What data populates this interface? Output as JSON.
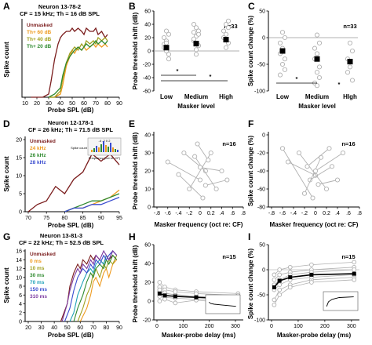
{
  "colors": {
    "unmasked": "#7b1d1d",
    "orange": "#ee9a1e",
    "green": "#2f8a2f",
    "olive": "#a0a020",
    "blue": "#3a4ccf",
    "purple": "#7c3aa0",
    "cyan": "#1fa2b8",
    "grey": "#b0b0b0"
  },
  "panels": {
    "A": {
      "letter": "A",
      "title1": "Neuron 13-78-2",
      "title2": "CF = 15 kHz; Th = 16 dB SPL",
      "xlabel": "Probe SPL (dB)",
      "ylabel": "Spike count",
      "xticks": [
        "10",
        "20",
        "30",
        "40",
        "50",
        "60",
        "70",
        "80",
        "90"
      ],
      "legend": [
        "Unmasked",
        "Th+ 60 dB",
        "Th+ 40 dB",
        "Th+ 20 dB"
      ]
    },
    "B": {
      "letter": "B",
      "ylabel": "Probe threshold shift (dB)",
      "xlabel": "Masker level",
      "n": "n=33",
      "xticks": [
        "Low",
        "Medium",
        "High"
      ],
      "yticks": [
        "60",
        "40",
        "20",
        "0",
        "-20",
        "-40",
        "-60"
      ],
      "star1": "*",
      "star2": "*"
    },
    "C": {
      "letter": "C",
      "ylabel": "Spike count change (%)",
      "xlabel": "Masker level",
      "n": "n=33",
      "xticks": [
        "Low",
        "Medium",
        "HIgh"
      ],
      "yticks": [
        "50",
        "0",
        "-50",
        "-100"
      ],
      "star1": "*",
      "star2": "*"
    },
    "D": {
      "letter": "D",
      "title1": "Neuron 12-178-1",
      "title2": "CF = 26 kHz; Th = 71.5 dB SPL",
      "xlabel": "Probe SPL (dB)",
      "ylabel": "Spike count",
      "xticks": [
        "70",
        "75",
        "80",
        "85",
        "90",
        "95"
      ],
      "yticks": [
        "0",
        "5",
        "10",
        "15",
        "20"
      ],
      "legend": [
        "Unmasked",
        "24 kHz",
        "26 kHz",
        "28 kHz"
      ],
      "inset_label": "Spike count",
      "inset_top": "-4 -2 0 2",
      "inset_bottom": "Frequency (oct re: CF)"
    },
    "E": {
      "letter": "E",
      "ylabel": "Probe threshold shift (dB)",
      "xlabel": "Masker frequency (oct re: CF)",
      "n": "n=16",
      "xticks": [
        "-.8",
        "-.6",
        "-.4",
        "-.2",
        "0",
        "0.2",
        ".4",
        ".6",
        ".8"
      ],
      "yticks": [
        "40",
        "30",
        "20",
        "10",
        "0"
      ]
    },
    "F": {
      "letter": "F",
      "ylabel": "Spike count change (%)",
      "xlabel": "Masker frequency (oct re: CF)",
      "n": "n=16",
      "xticks": [
        "-.8",
        "-.6",
        "-.4",
        "-.2",
        "0",
        "0.2",
        ".4",
        ".6",
        ".8"
      ],
      "yticks": [
        "0",
        "-20",
        "-40",
        "-60",
        "-80"
      ]
    },
    "G": {
      "letter": "G",
      "title1": "Neuron 13-81-3",
      "title2": "CF = 22 kHz; Th = 52.5 dB SPL",
      "xlabel": "Probe SPL (dB)",
      "ylabel": "Spike count",
      "xticks": [
        "20",
        "30",
        "40",
        "50",
        "60",
        "70",
        "80",
        "90"
      ],
      "yticks": [
        "0",
        "2",
        "4",
        "6",
        "8",
        "10",
        "12",
        "14",
        "16"
      ],
      "legend": [
        "Unmasked",
        "0 ms",
        "10 ms",
        "30 ms",
        "70 ms",
        "150 ms",
        "310 ms"
      ]
    },
    "H": {
      "letter": "H",
      "ylabel": "Probe threshold shift (dB)",
      "xlabel": "Masker-probe delay (ms)",
      "n": "n=15",
      "xticks": [
        "0",
        "100",
        "200",
        "300"
      ],
      "yticks": [
        "60",
        "40",
        "20",
        "0",
        "-20"
      ]
    },
    "I": {
      "letter": "I",
      "ylabel": "Spike count change (%)",
      "xlabel": "Masker-probe delay (ms)",
      "n": "n=15",
      "xticks": [
        "0",
        "100",
        "200",
        "300"
      ],
      "yticks": [
        "50",
        "0",
        "-50",
        "-100"
      ]
    }
  },
  "chart_data": [
    {
      "panel": "A",
      "type": "line",
      "title": "Neuron 13-78-2",
      "xlabel": "Probe SPL (dB)",
      "ylabel": "Spike count",
      "xlim": [
        10,
        90
      ],
      "ylim": [
        0,
        25
      ],
      "series": [
        {
          "name": "Unmasked",
          "x": [
            15,
            20,
            25,
            30,
            32,
            35,
            38,
            40,
            42,
            45,
            48,
            50,
            52,
            55,
            58,
            60,
            62,
            65,
            68,
            70,
            72,
            75,
            78,
            80
          ],
          "y": [
            0,
            0,
            0,
            1,
            5,
            12,
            17,
            19,
            20,
            21,
            21,
            22,
            21,
            22,
            21,
            20,
            22,
            21,
            21,
            22,
            20,
            21,
            19,
            20
          ]
        },
        {
          "name": "Th+ 60 dB",
          "x": [
            30,
            35,
            40,
            42,
            45,
            48,
            50,
            52,
            55,
            58,
            60,
            62,
            65,
            68,
            70,
            72,
            75,
            78,
            80
          ],
          "y": [
            0,
            0,
            1,
            4,
            10,
            13,
            15,
            14,
            16,
            15,
            16,
            15,
            16,
            17,
            16,
            17,
            16,
            17,
            16
          ]
        },
        {
          "name": "Th+ 40 dB",
          "x": [
            30,
            35,
            40,
            42,
            45,
            48,
            50,
            52,
            55,
            58,
            60,
            62,
            65,
            68,
            70,
            72,
            75,
            78,
            80
          ],
          "y": [
            0,
            0,
            2,
            6,
            11,
            14,
            15,
            16,
            15,
            17,
            16,
            18,
            17,
            18,
            17,
            19,
            18,
            19,
            18
          ]
        },
        {
          "name": "Th+ 20 dB",
          "x": [
            30,
            35,
            40,
            42,
            45,
            48,
            50,
            52,
            55,
            58,
            60,
            62,
            65,
            68,
            70,
            72,
            75,
            78,
            80
          ],
          "y": [
            0,
            1,
            3,
            7,
            11,
            13,
            14,
            15,
            16,
            15,
            16,
            17,
            16,
            17,
            18,
            17,
            18,
            17,
            18
          ]
        }
      ]
    },
    {
      "panel": "B",
      "type": "scatter",
      "categories": [
        "Low",
        "Medium",
        "High"
      ],
      "ylabel": "Probe threshold shift (dB)",
      "ylim": [
        -60,
        60
      ],
      "series": [
        {
          "name": "mean",
          "values": [
            5,
            11,
            17
          ]
        }
      ]
    },
    {
      "panel": "C",
      "type": "scatter",
      "categories": [
        "Low",
        "Medium",
        "HIgh"
      ],
      "ylabel": "Spike count change (%)",
      "ylim": [
        -100,
        50
      ],
      "series": [
        {
          "name": "mean",
          "values": [
            -25,
            -40,
            -45
          ]
        }
      ]
    },
    {
      "panel": "D",
      "type": "line",
      "title": "Neuron 12-178-1",
      "xlabel": "Probe SPL (dB)",
      "ylabel": "Spike count",
      "xlim": [
        70,
        95
      ],
      "ylim": [
        0,
        20
      ],
      "series": [
        {
          "name": "Unmasked",
          "x": [
            70,
            72.5,
            75,
            77.5,
            80,
            82.5,
            85,
            87.5,
            90,
            92.5,
            95
          ],
          "y": [
            0,
            2,
            3,
            7,
            5,
            9,
            11,
            16,
            14,
            16,
            13
          ]
        },
        {
          "name": "24 kHz",
          "x": [
            80,
            82.5,
            85,
            87.5,
            90,
            92.5,
            95
          ],
          "y": [
            0,
            1,
            1,
            2,
            3,
            4,
            6
          ]
        },
        {
          "name": "26 kHz",
          "x": [
            80,
            82.5,
            85,
            87.5,
            90,
            92.5,
            95
          ],
          "y": [
            0,
            1,
            2,
            3,
            3,
            4,
            5
          ]
        },
        {
          "name": "28 kHz",
          "x": [
            80,
            82.5,
            85,
            87.5,
            90,
            92.5,
            95
          ],
          "y": [
            0,
            1,
            1,
            2,
            2,
            3,
            4
          ]
        }
      ]
    },
    {
      "panel": "E",
      "type": "scatter",
      "xlabel": "Masker frequency (oct re: CF)",
      "ylabel": "Probe threshold shift (dB)",
      "xlim": [
        -0.8,
        0.8
      ],
      "ylim": [
        0,
        40
      ]
    },
    {
      "panel": "F",
      "type": "scatter",
      "xlabel": "Masker frequency (oct re: CF)",
      "ylabel": "Spike count change (%)",
      "xlim": [
        -0.8,
        0.8
      ],
      "ylim": [
        -80,
        0
      ]
    },
    {
      "panel": "G",
      "type": "line",
      "title": "Neuron 13-81-3",
      "xlabel": "Probe SPL (dB)",
      "ylabel": "Spike count",
      "xlim": [
        20,
        90
      ],
      "ylim": [
        0,
        16
      ],
      "series": [
        {
          "name": "Unmasked",
          "x": [
            45,
            50,
            52,
            55,
            58,
            60,
            62,
            65,
            68,
            70,
            72,
            75,
            78,
            80,
            82,
            85,
            88
          ],
          "y": [
            0,
            4,
            8,
            11,
            13,
            12,
            14,
            13,
            15,
            14,
            15,
            14,
            13,
            15,
            14,
            15,
            14
          ]
        },
        {
          "name": "0 ms",
          "x": [
            60,
            65,
            68,
            70,
            72,
            75,
            78,
            80,
            82,
            85,
            88
          ],
          "y": [
            0,
            3,
            6,
            9,
            10,
            8,
            11,
            12,
            10,
            13,
            14
          ]
        },
        {
          "name": "10 ms",
          "x": [
            58,
            62,
            65,
            68,
            70,
            72,
            75,
            78,
            80,
            82,
            85,
            88
          ],
          "y": [
            0,
            3,
            6,
            8,
            11,
            12,
            10,
            13,
            12,
            14,
            13,
            15
          ]
        },
        {
          "name": "30 ms",
          "x": [
            55,
            58,
            62,
            65,
            68,
            70,
            72,
            75,
            78,
            80,
            82,
            85,
            88
          ],
          "y": [
            0,
            3,
            6,
            9,
            11,
            10,
            12,
            13,
            12,
            14,
            13,
            15,
            14
          ]
        },
        {
          "name": "70 ms",
          "x": [
            52,
            55,
            58,
            62,
            65,
            68,
            70,
            72,
            75,
            78,
            80,
            82,
            85,
            88
          ],
          "y": [
            0,
            2,
            6,
            9,
            11,
            12,
            11,
            13,
            14,
            13,
            15,
            14,
            16,
            15
          ]
        },
        {
          "name": "150 ms",
          "x": [
            48,
            52,
            55,
            58,
            62,
            65,
            68,
            70,
            72,
            75,
            78,
            80,
            82,
            85,
            88
          ],
          "y": [
            0,
            3,
            7,
            10,
            12,
            11,
            13,
            12,
            14,
            13,
            15,
            14,
            15,
            16,
            15
          ]
        },
        {
          "name": "310 ms",
          "x": [
            46,
            50,
            52,
            55,
            58,
            60,
            62,
            65,
            68,
            70,
            72,
            75,
            78,
            80,
            82,
            85,
            88
          ],
          "y": [
            0,
            4,
            7,
            10,
            12,
            11,
            13,
            12,
            14,
            13,
            15,
            14,
            16,
            15,
            14,
            16,
            15
          ]
        }
      ]
    },
    {
      "panel": "H",
      "type": "line",
      "xlabel": "Masker-probe delay (ms)",
      "ylabel": "Probe threshold shift (dB)",
      "xlim": [
        0,
        330
      ],
      "ylim": [
        -20,
        60
      ],
      "series": [
        {
          "name": "mean",
          "x": [
            10,
            30,
            70,
            150,
            310
          ],
          "y": [
            8,
            6,
            5,
            4,
            2
          ]
        }
      ]
    },
    {
      "panel": "I",
      "type": "line",
      "xlabel": "Masker-probe delay (ms)",
      "ylabel": "Spike count change (%)",
      "xlim": [
        0,
        330
      ],
      "ylim": [
        -100,
        50
      ],
      "series": [
        {
          "name": "mean",
          "x": [
            10,
            30,
            70,
            150,
            310
          ],
          "y": [
            -35,
            -22,
            -15,
            -10,
            -8
          ]
        }
      ]
    }
  ]
}
